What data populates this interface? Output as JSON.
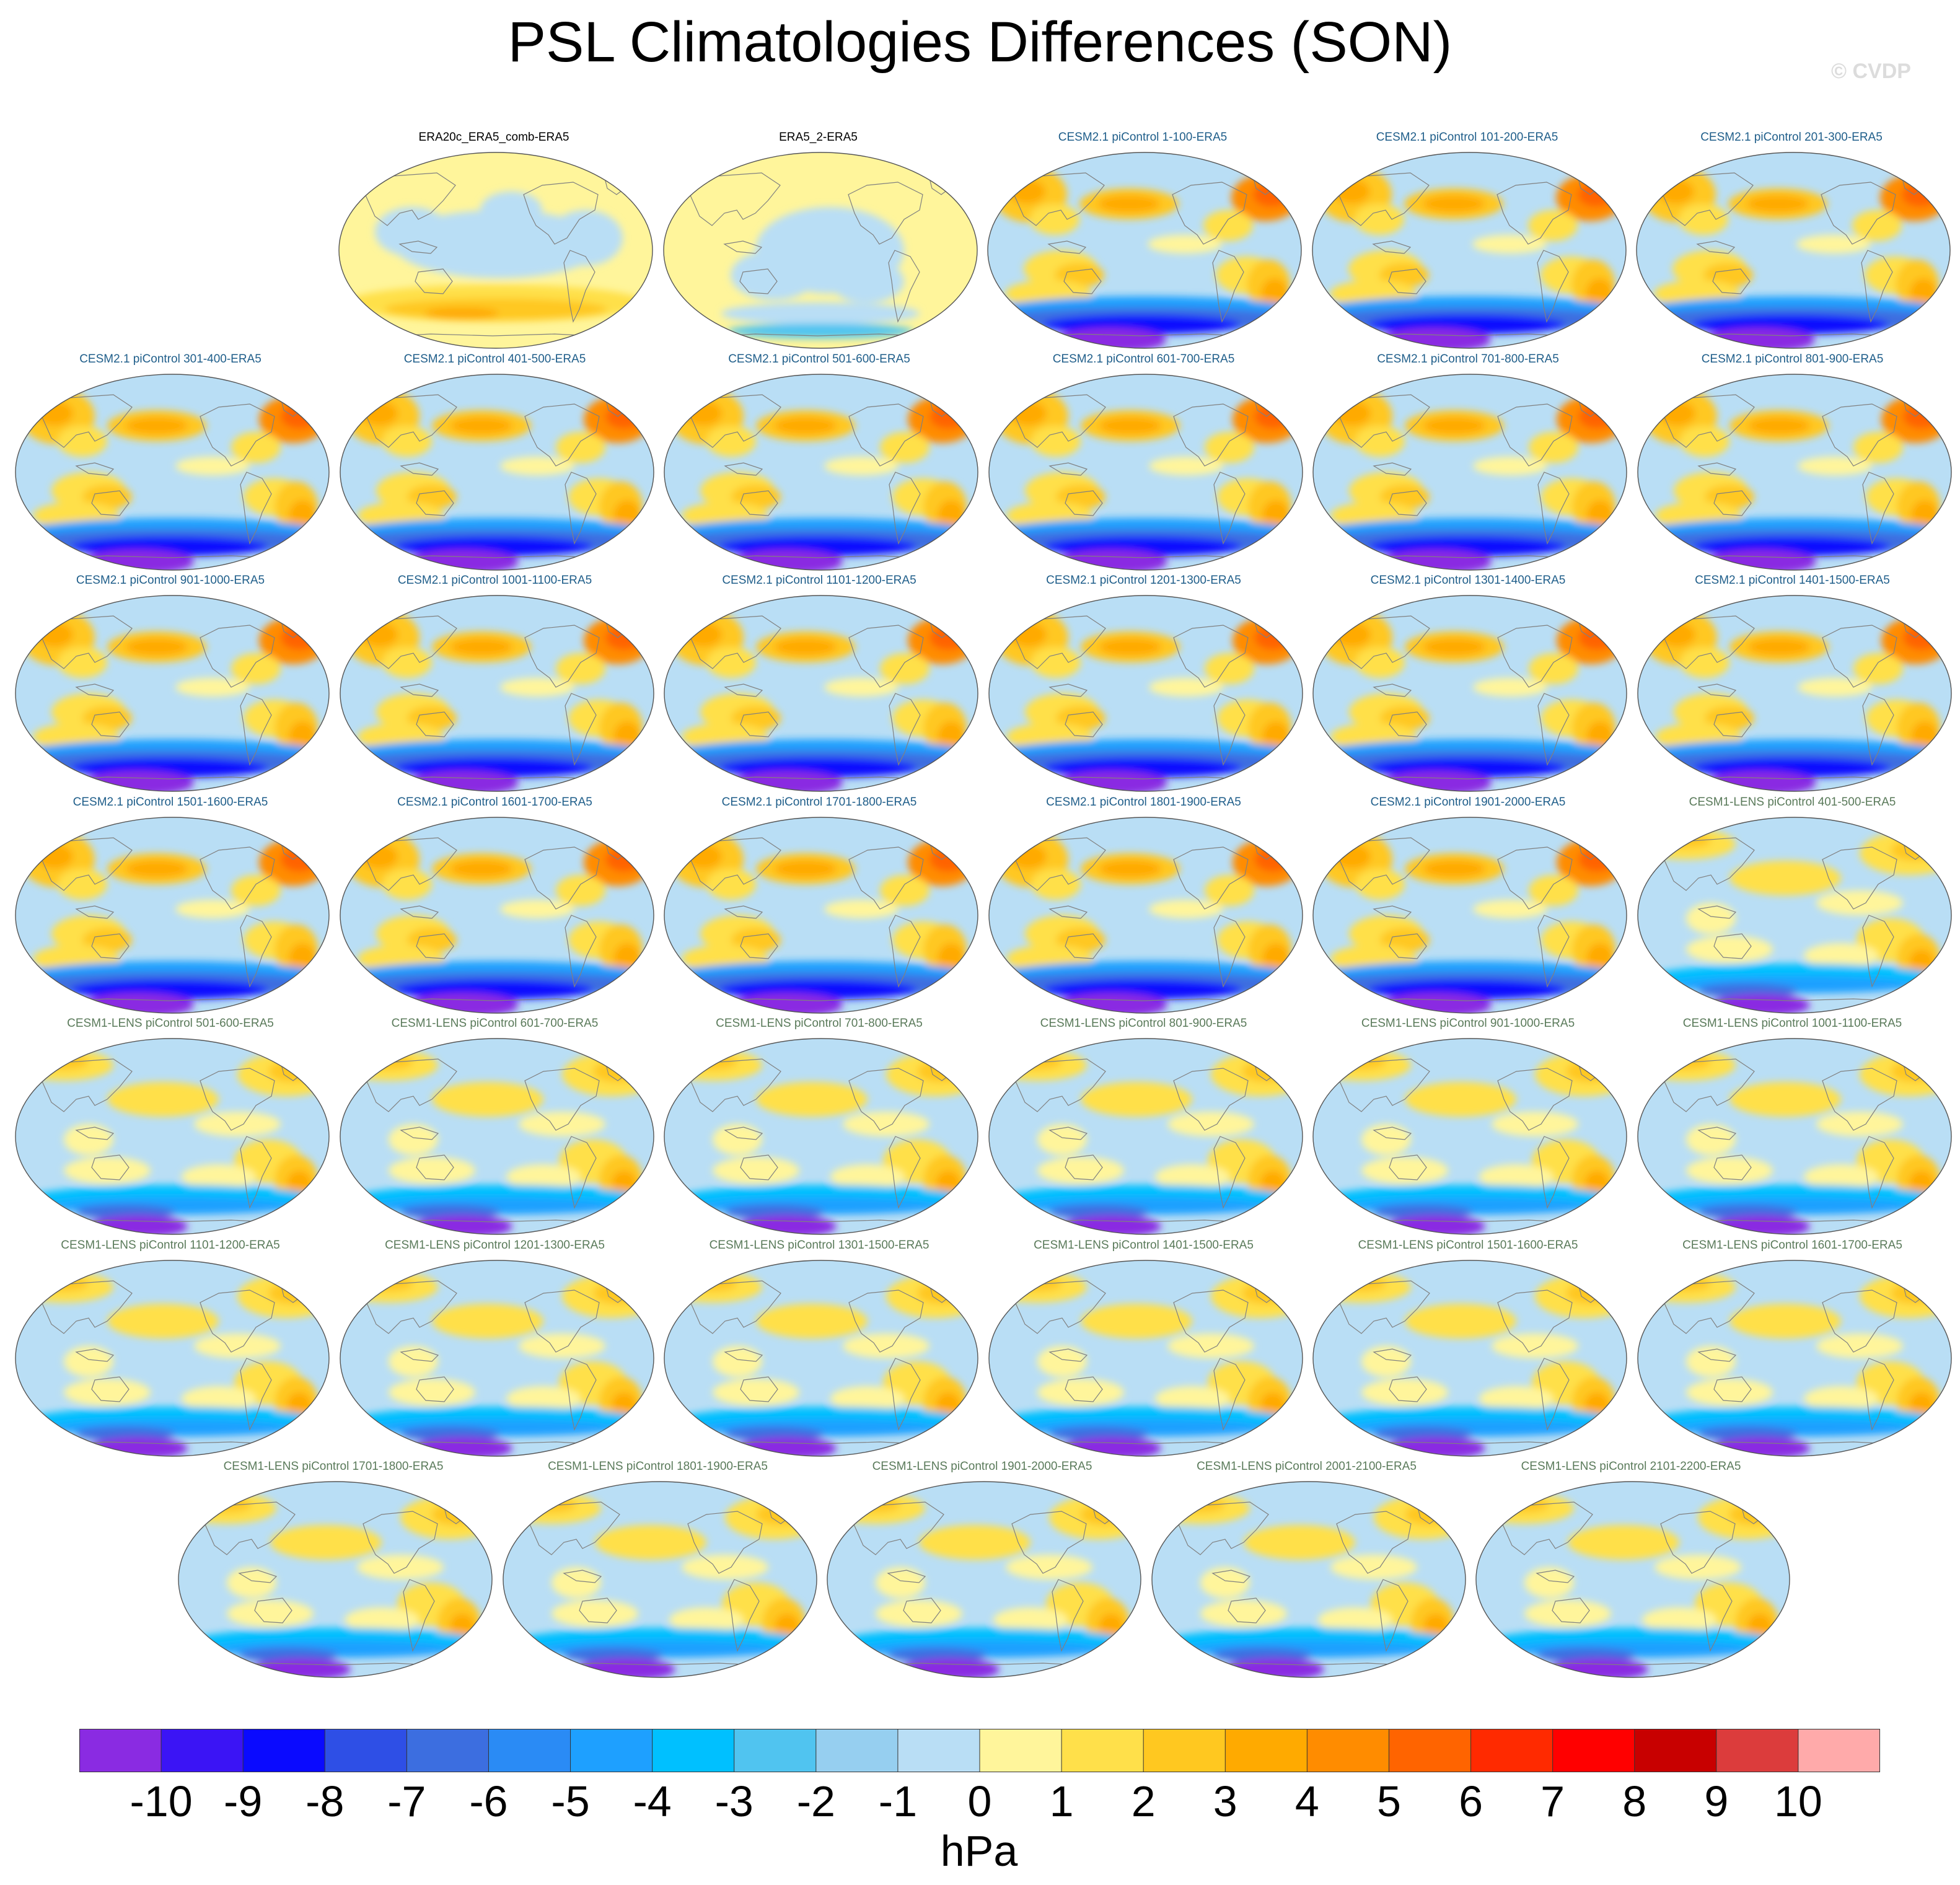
{
  "title": "PSL Climatologies Differences (SON)",
  "credit": "© CVDP",
  "colors": {
    "obs_title": "#000000",
    "cesm2_title": "#1f5e8a",
    "cesm1_title": "#5a7a5a",
    "coastline": "#808080"
  },
  "panels": [
    {
      "label": "ERA20c_ERA5_comb-ERA5",
      "group": "obs",
      "pattern": "obs1"
    },
    {
      "label": "ERA5_2-ERA5",
      "group": "obs",
      "pattern": "obs2"
    },
    {
      "label": "CESM2.1 piControl 1-100-ERA5",
      "group": "cesm2",
      "pattern": "cesm2"
    },
    {
      "label": "CESM2.1 piControl 101-200-ERA5",
      "group": "cesm2",
      "pattern": "cesm2"
    },
    {
      "label": "CESM2.1 piControl 201-300-ERA5",
      "group": "cesm2",
      "pattern": "cesm2"
    },
    {
      "label": "CESM2.1 piControl 301-400-ERA5",
      "group": "cesm2",
      "pattern": "cesm2"
    },
    {
      "label": "CESM2.1 piControl 401-500-ERA5",
      "group": "cesm2",
      "pattern": "cesm2"
    },
    {
      "label": "CESM2.1 piControl 501-600-ERA5",
      "group": "cesm2",
      "pattern": "cesm2"
    },
    {
      "label": "CESM2.1 piControl 601-700-ERA5",
      "group": "cesm2",
      "pattern": "cesm2"
    },
    {
      "label": "CESM2.1 piControl 701-800-ERA5",
      "group": "cesm2",
      "pattern": "cesm2"
    },
    {
      "label": "CESM2.1 piControl 801-900-ERA5",
      "group": "cesm2",
      "pattern": "cesm2"
    },
    {
      "label": "CESM2.1 piControl 901-1000-ERA5",
      "group": "cesm2",
      "pattern": "cesm2"
    },
    {
      "label": "CESM2.1 piControl 1001-1100-ERA5",
      "group": "cesm2",
      "pattern": "cesm2"
    },
    {
      "label": "CESM2.1 piControl 1101-1200-ERA5",
      "group": "cesm2",
      "pattern": "cesm2"
    },
    {
      "label": "CESM2.1 piControl 1201-1300-ERA5",
      "group": "cesm2",
      "pattern": "cesm2"
    },
    {
      "label": "CESM2.1 piControl 1301-1400-ERA5",
      "group": "cesm2",
      "pattern": "cesm2"
    },
    {
      "label": "CESM2.1 piControl 1401-1500-ERA5",
      "group": "cesm2",
      "pattern": "cesm2"
    },
    {
      "label": "CESM2.1 piControl 1501-1600-ERA5",
      "group": "cesm2",
      "pattern": "cesm2"
    },
    {
      "label": "CESM2.1 piControl 1601-1700-ERA5",
      "group": "cesm2",
      "pattern": "cesm2"
    },
    {
      "label": "CESM2.1 piControl 1701-1800-ERA5",
      "group": "cesm2",
      "pattern": "cesm2"
    },
    {
      "label": "CESM2.1 piControl 1801-1900-ERA5",
      "group": "cesm2",
      "pattern": "cesm2"
    },
    {
      "label": "CESM2.1 piControl 1901-2000-ERA5",
      "group": "cesm2",
      "pattern": "cesm2"
    },
    {
      "label": "CESM1-LENS piControl 401-500-ERA5",
      "group": "cesm1",
      "pattern": "cesm1"
    },
    {
      "label": "CESM1-LENS piControl 501-600-ERA5",
      "group": "cesm1",
      "pattern": "cesm1"
    },
    {
      "label": "CESM1-LENS piControl 601-700-ERA5",
      "group": "cesm1",
      "pattern": "cesm1"
    },
    {
      "label": "CESM1-LENS piControl 701-800-ERA5",
      "group": "cesm1",
      "pattern": "cesm1"
    },
    {
      "label": "CESM1-LENS piControl 801-900-ERA5",
      "group": "cesm1",
      "pattern": "cesm1"
    },
    {
      "label": "CESM1-LENS piControl 901-1000-ERA5",
      "group": "cesm1",
      "pattern": "cesm1"
    },
    {
      "label": "CESM1-LENS piControl 1001-1100-ERA5",
      "group": "cesm1",
      "pattern": "cesm1"
    },
    {
      "label": "CESM1-LENS piControl 1101-1200-ERA5",
      "group": "cesm1",
      "pattern": "cesm1"
    },
    {
      "label": "CESM1-LENS piControl 1201-1300-ERA5",
      "group": "cesm1",
      "pattern": "cesm1"
    },
    {
      "label": "CESM1-LENS piControl 1301-1500-ERA5",
      "group": "cesm1",
      "pattern": "cesm1"
    },
    {
      "label": "CESM1-LENS piControl 1401-1500-ERA5",
      "group": "cesm1",
      "pattern": "cesm1"
    },
    {
      "label": "CESM1-LENS piControl 1501-1600-ERA5",
      "group": "cesm1",
      "pattern": "cesm1"
    },
    {
      "label": "CESM1-LENS piControl 1601-1700-ERA5",
      "group": "cesm1",
      "pattern": "cesm1"
    },
    {
      "label": "CESM1-LENS piControl 1701-1800-ERA5",
      "group": "cesm1",
      "pattern": "cesm1"
    },
    {
      "label": "CESM1-LENS piControl 1801-1900-ERA5",
      "group": "cesm1",
      "pattern": "cesm1"
    },
    {
      "label": "CESM1-LENS piControl 1901-2000-ERA5",
      "group": "cesm1",
      "pattern": "cesm1"
    },
    {
      "label": "CESM1-LENS piControl 2001-2100-ERA5",
      "group": "cesm1",
      "pattern": "cesm1"
    },
    {
      "label": "CESM1-LENS piControl 2101-2200-ERA5",
      "group": "cesm1",
      "pattern": "cesm1"
    }
  ],
  "colorbar": {
    "colors": [
      "#8a2be2",
      "#3b14f5",
      "#0a0aff",
      "#2e4fe6",
      "#3c6ee0",
      "#2a8bf5",
      "#1ea0ff",
      "#00c0ff",
      "#50c4f0",
      "#96cff0",
      "#b9def5",
      "#fff59b",
      "#ffe04a",
      "#ffc820",
      "#ffaa00",
      "#ff8c00",
      "#ff6400",
      "#ff2a00",
      "#ff0000",
      "#c80000",
      "#dc3c3c",
      "#ffaaaa"
    ],
    "labels": [
      "-10",
      "-9",
      "-8",
      "-7",
      "-6",
      "-5",
      "-4",
      "-3",
      "-2",
      "-1",
      "0",
      "1",
      "2",
      "3",
      "4",
      "5",
      "6",
      "7",
      "8",
      "9",
      "10"
    ],
    "units": "hPa"
  }
}
